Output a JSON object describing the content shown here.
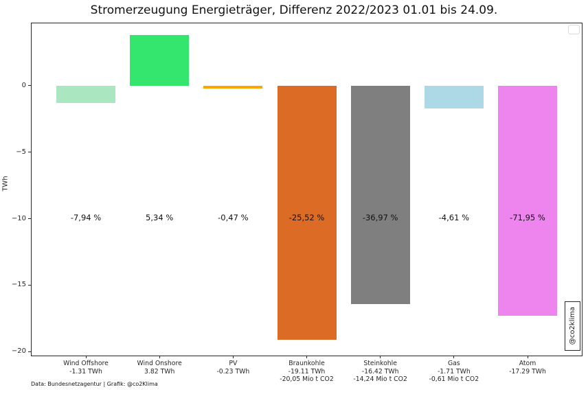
{
  "title": "Stromerzeugung Energieträger, Differenz 2022/2023 01.01 bis 24.09.",
  "footer": "Data: Bundesnetzagentur | Grafik: @co2Klima",
  "watermark": "@co2klima",
  "chart_data": {
    "type": "bar",
    "title": "Stromerzeugung Energieträger, Differenz 2022/2023 01.01 bis 24.09.",
    "xlabel": "",
    "ylabel": "TWh",
    "ylim": [
      -20.3,
      4.7
    ],
    "grid": false,
    "legend": {
      "visible": true,
      "entries": []
    },
    "categories": [
      "Wind Offshore",
      "Wind Onshore",
      "PV",
      "Braunkohle",
      "Steinkohle",
      "Gas",
      "Atom"
    ],
    "values_twh": [
      -1.31,
      3.82,
      -0.23,
      -19.11,
      -16.42,
      -1.71,
      -17.29
    ],
    "co2_mio_t": [
      null,
      null,
      null,
      -20.05,
      -14.24,
      -0.61,
      null
    ],
    "percent_change": [
      "-7,94 %",
      "5,34 %",
      "-0,47 %",
      "-25,52 %",
      "-36,97 %",
      "-4,61 %",
      "-71,95 %"
    ],
    "yticks": [
      {
        "value": 0,
        "label": "0"
      },
      {
        "value": -5,
        "label": "−5"
      },
      {
        "value": -10,
        "label": "−10"
      },
      {
        "value": -15,
        "label": "−15"
      },
      {
        "value": -20,
        "label": "−20"
      }
    ],
    "bars": [
      {
        "category": "Wind Offshore",
        "twh": -1.31,
        "percent": "-7,94 %",
        "color": "#aae7c1",
        "label_lines": [
          "Wind Offshore",
          "-1.31 TWh"
        ]
      },
      {
        "category": "Wind Onshore",
        "twh": 3.82,
        "percent": "5,34 %",
        "color": "#34e56e",
        "label_lines": [
          "Wind Onshore",
          "3.82 TWh"
        ]
      },
      {
        "category": "PV",
        "twh": -0.23,
        "percent": "-0,47 %",
        "color": "#ffa500",
        "label_lines": [
          "PV",
          "-0.23 TWh"
        ]
      },
      {
        "category": "Braunkohle",
        "twh": -19.11,
        "percent": "-25,52 %",
        "color": "#dc6b26",
        "label_lines": [
          "Braunkohle",
          "-19.11 TWh",
          "-20,05 Mio t CO2"
        ]
      },
      {
        "category": "Steinkohle",
        "twh": -16.42,
        "percent": "-36,97 %",
        "color": "#7f7f7f",
        "label_lines": [
          "Steinkohle",
          "-16.42 TWh",
          "-14,24 Mio t CO2"
        ]
      },
      {
        "category": "Gas",
        "twh": -1.71,
        "percent": "-4,61 %",
        "color": "#add8e6",
        "label_lines": [
          "Gas",
          "-1.71 TWh",
          "-0,61 Mio t CO2"
        ]
      },
      {
        "category": "Atom",
        "twh": -17.29,
        "percent": "-71,95 %",
        "color": "#ee84ee",
        "label_lines": [
          "Atom",
          "-17.29 TWh"
        ]
      }
    ]
  }
}
